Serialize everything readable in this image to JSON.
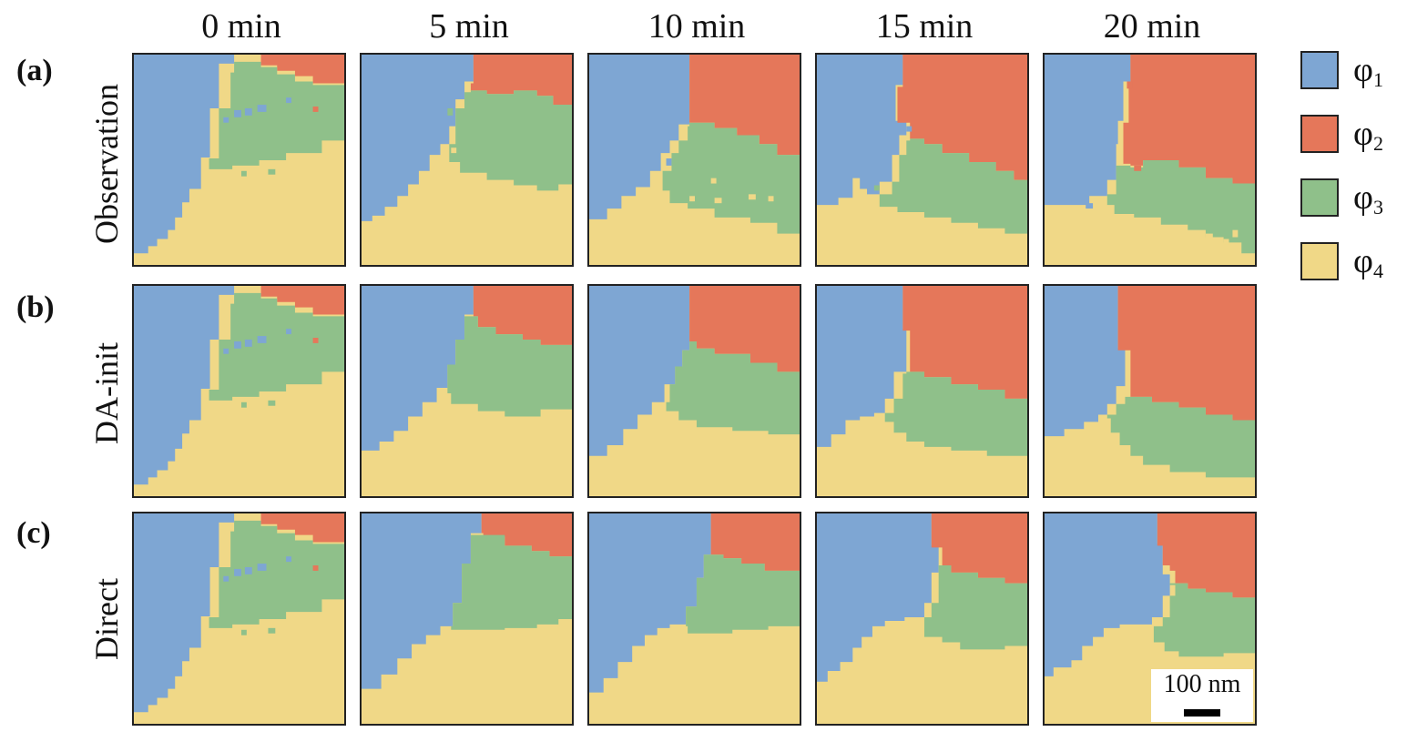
{
  "columns": [
    "0 min",
    "5 min",
    "10 min",
    "15 min",
    "20 min"
  ],
  "rows": [
    {
      "tag": "(a)",
      "label": "Observation"
    },
    {
      "tag": "(b)",
      "label": "DA-init"
    },
    {
      "tag": "(c)",
      "label": "Direct"
    }
  ],
  "legend": [
    {
      "symbol": "φ",
      "sub": "1",
      "color": "#7ea6d3"
    },
    {
      "symbol": "φ",
      "sub": "2",
      "color": "#e5775a"
    },
    {
      "symbol": "φ",
      "sub": "3",
      "color": "#8fc08a"
    },
    {
      "symbol": "φ",
      "sub": "4",
      "color": "#f0d887"
    }
  ],
  "scalebar": {
    "label": "100 nm"
  }
}
